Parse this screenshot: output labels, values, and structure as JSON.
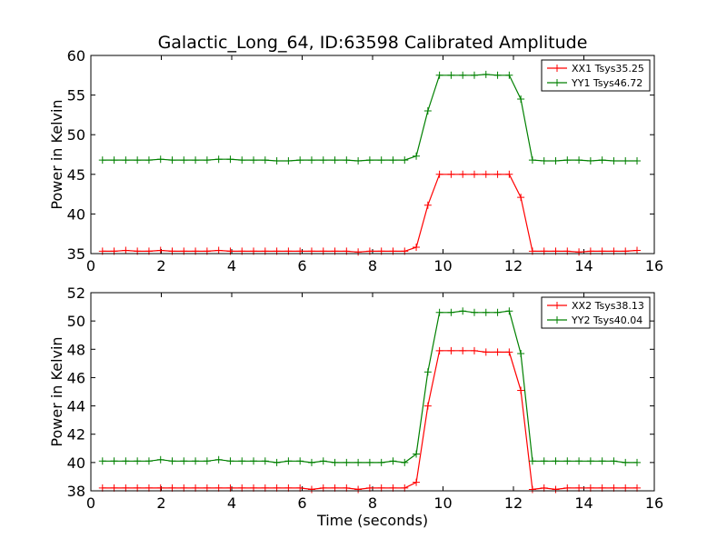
{
  "figure": {
    "title": "Galactic_Long_64, ID:63598 Calibrated Amplitude",
    "xlabel": "Time (seconds)"
  },
  "chart_data": [
    {
      "type": "line",
      "title": "Galactic_Long_64, ID:63598 Calibrated Amplitude",
      "xlabel": "",
      "ylabel": "Power in Kelvin",
      "xlim": [
        0,
        16
      ],
      "ylim": [
        35,
        60
      ],
      "xticks": [
        0,
        2,
        4,
        6,
        8,
        10,
        12,
        14,
        16
      ],
      "yticks": [
        35,
        40,
        45,
        50,
        55,
        60
      ],
      "legend_position": "top-right",
      "grid": false,
      "x": [
        0.33,
        0.66,
        0.99,
        1.32,
        1.65,
        1.98,
        2.31,
        2.64,
        2.97,
        3.3,
        3.63,
        3.96,
        4.29,
        4.62,
        4.95,
        5.28,
        5.61,
        5.94,
        6.27,
        6.6,
        6.93,
        7.26,
        7.59,
        7.92,
        8.25,
        8.58,
        8.91,
        9.24,
        9.57,
        9.9,
        10.23,
        10.56,
        10.89,
        11.22,
        11.55,
        11.88,
        12.21,
        12.54,
        12.87,
        13.2,
        13.53,
        13.86,
        14.19,
        14.52,
        14.85,
        15.18,
        15.51
      ],
      "series": [
        {
          "name": "XX1 Tsys35.25",
          "color": "#ff0000",
          "values": [
            35.3,
            35.3,
            35.4,
            35.3,
            35.3,
            35.4,
            35.3,
            35.3,
            35.3,
            35.3,
            35.4,
            35.3,
            35.3,
            35.3,
            35.3,
            35.3,
            35.3,
            35.3,
            35.3,
            35.3,
            35.3,
            35.3,
            35.2,
            35.3,
            35.3,
            35.3,
            35.3,
            35.8,
            41.1,
            45.0,
            45.0,
            45.0,
            45.0,
            45.0,
            45.0,
            45.0,
            42.1,
            35.3,
            35.3,
            35.3,
            35.3,
            35.2,
            35.3,
            35.3,
            35.3,
            35.3,
            35.4
          ]
        },
        {
          "name": "YY1 Tsys46.72",
          "color": "#008000",
          "values": [
            46.8,
            46.8,
            46.8,
            46.8,
            46.8,
            46.9,
            46.8,
            46.8,
            46.8,
            46.8,
            46.9,
            46.9,
            46.8,
            46.8,
            46.8,
            46.7,
            46.7,
            46.8,
            46.8,
            46.8,
            46.8,
            46.8,
            46.7,
            46.8,
            46.8,
            46.8,
            46.8,
            47.3,
            53.0,
            57.5,
            57.5,
            57.5,
            57.5,
            57.6,
            57.5,
            57.5,
            54.5,
            46.8,
            46.7,
            46.7,
            46.8,
            46.8,
            46.7,
            46.8,
            46.7,
            46.7,
            46.7
          ]
        }
      ]
    },
    {
      "type": "line",
      "title": "",
      "xlabel": "Time (seconds)",
      "ylabel": "Power in Kelvin",
      "xlim": [
        0,
        16
      ],
      "ylim": [
        38,
        52
      ],
      "xticks": [
        0,
        2,
        4,
        6,
        8,
        10,
        12,
        14,
        16
      ],
      "yticks": [
        38,
        40,
        42,
        44,
        46,
        48,
        50,
        52
      ],
      "legend_position": "top-right",
      "grid": false,
      "x": [
        0.33,
        0.66,
        0.99,
        1.32,
        1.65,
        1.98,
        2.31,
        2.64,
        2.97,
        3.3,
        3.63,
        3.96,
        4.29,
        4.62,
        4.95,
        5.28,
        5.61,
        5.94,
        6.27,
        6.6,
        6.93,
        7.26,
        7.59,
        7.92,
        8.25,
        8.58,
        8.91,
        9.24,
        9.57,
        9.9,
        10.23,
        10.56,
        10.89,
        11.22,
        11.55,
        11.88,
        12.21,
        12.54,
        12.87,
        13.2,
        13.53,
        13.86,
        14.19,
        14.52,
        14.85,
        15.18,
        15.51
      ],
      "series": [
        {
          "name": "XX2 Tsys38.13",
          "color": "#ff0000",
          "values": [
            38.2,
            38.2,
            38.2,
            38.2,
            38.2,
            38.2,
            38.2,
            38.2,
            38.2,
            38.2,
            38.2,
            38.2,
            38.2,
            38.2,
            38.2,
            38.2,
            38.2,
            38.2,
            38.1,
            38.2,
            38.2,
            38.2,
            38.1,
            38.2,
            38.2,
            38.2,
            38.2,
            38.6,
            44.0,
            47.9,
            47.9,
            47.9,
            47.9,
            47.8,
            47.8,
            47.8,
            45.1,
            38.1,
            38.2,
            38.1,
            38.2,
            38.2,
            38.2,
            38.2,
            38.2,
            38.2,
            38.2
          ]
        },
        {
          "name": "YY2 Tsys40.04",
          "color": "#008000",
          "values": [
            40.1,
            40.1,
            40.1,
            40.1,
            40.1,
            40.2,
            40.1,
            40.1,
            40.1,
            40.1,
            40.2,
            40.1,
            40.1,
            40.1,
            40.1,
            40.0,
            40.1,
            40.1,
            40.0,
            40.1,
            40.0,
            40.0,
            40.0,
            40.0,
            40.0,
            40.1,
            40.0,
            40.6,
            46.4,
            50.6,
            50.6,
            50.7,
            50.6,
            50.6,
            50.6,
            50.7,
            47.7,
            40.1,
            40.1,
            40.1,
            40.1,
            40.1,
            40.1,
            40.1,
            40.1,
            40.0,
            40.0
          ]
        }
      ]
    }
  ]
}
